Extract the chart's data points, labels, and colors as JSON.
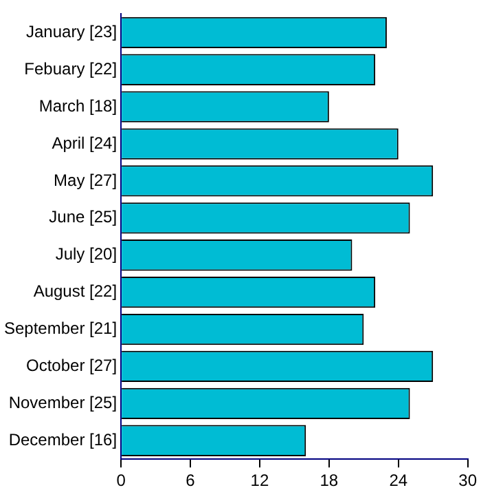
{
  "chart_data": {
    "type": "bar",
    "orientation": "horizontal",
    "categories": [
      "January [23]",
      "Febuary [22]",
      "March [18]",
      "April [24]",
      "May [27]",
      "June [25]",
      "July [20]",
      "August [22]",
      "September [21]",
      "October [27]",
      "November [25]",
      "December [16]"
    ],
    "values": [
      23,
      22,
      18,
      24,
      27,
      25,
      20,
      22,
      21,
      27,
      25,
      16
    ],
    "color": "#00bcd4",
    "xlim": [
      0,
      30
    ],
    "xticks": [
      0,
      6,
      12,
      18,
      24,
      30
    ],
    "grid": false,
    "legend": false
  }
}
